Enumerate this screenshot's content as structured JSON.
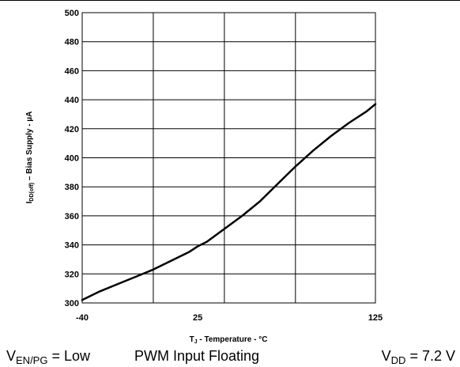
{
  "chart_data": {
    "type": "line",
    "xlabel_main": "T",
    "xlabel_sub": "J",
    "xlabel_rest": " - Temperature - °C",
    "ylabel_main": "I",
    "ylabel_sub": "DD(off)",
    "ylabel_rest": " – Bias Supply - µA",
    "xlim": [
      -40,
      125
    ],
    "ylim": [
      300,
      500
    ],
    "x_ticks": [
      -40,
      25,
      125
    ],
    "x_gridlines": [
      -40,
      0,
      40,
      80,
      125
    ],
    "y_ticks": [
      300,
      320,
      340,
      360,
      380,
      400,
      420,
      440,
      460,
      480,
      500
    ],
    "grid": true,
    "series": [
      {
        "x": [
          -40,
          -30,
          -20,
          -10,
          0,
          10,
          20,
          25,
          30,
          40,
          50,
          60,
          70,
          80,
          90,
          100,
          110,
          120,
          125
        ],
        "y": [
          302,
          308,
          313,
          318,
          323,
          329,
          335,
          339,
          342,
          351,
          360,
          370,
          382,
          394,
          405,
          415,
          424,
          432,
          437
        ]
      }
    ]
  },
  "captions": {
    "ven_main": "V",
    "ven_sub": "EN/PG",
    "ven_rest": " = Low",
    "pwm": "PWM Input Floating",
    "vdd_main": "V",
    "vdd_sub": "DD",
    "vdd_rest": " = 7.2 V"
  }
}
